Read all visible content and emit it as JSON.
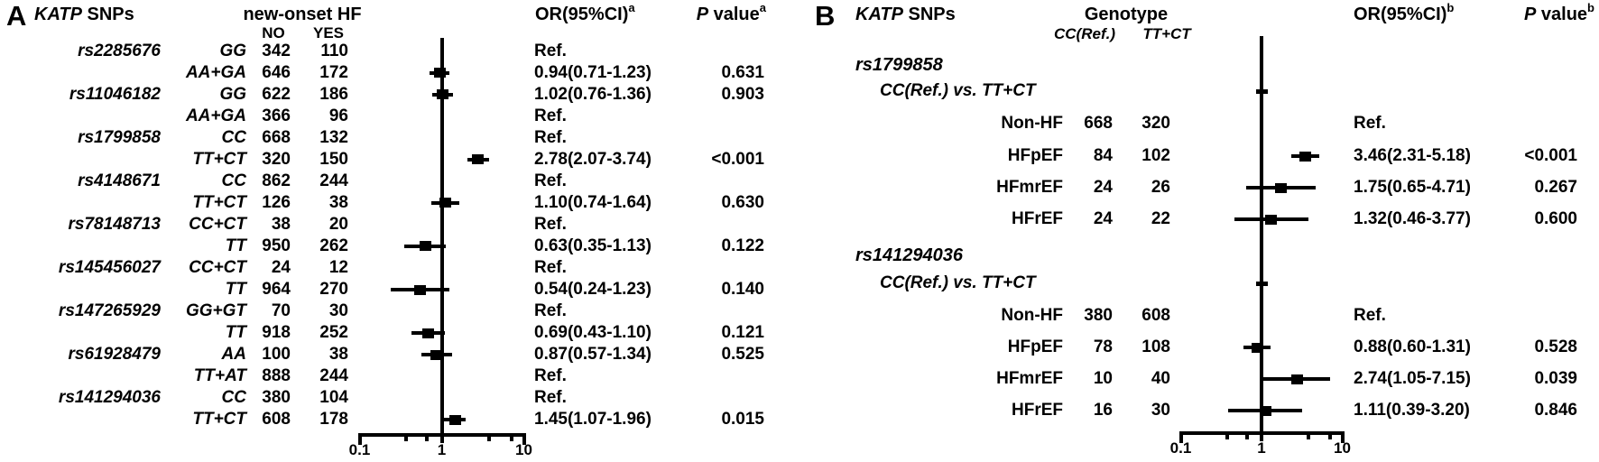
{
  "figure": {
    "background_color": "#ffffff",
    "ink_color": "#000000"
  },
  "chart_data": [
    {
      "type": "forest",
      "panel_label": "A",
      "header": {
        "gene_italic": "KATP",
        "gene_rest": " SNPs",
        "group": "new-onset HF",
        "sub_cols": [
          "NO",
          "YES"
        ],
        "or_label": "OR(95%CI)",
        "or_sup": "a",
        "p_italic": "P",
        "p_rest": " value",
        "p_sup": "a"
      },
      "xaxis": {
        "scale": "log",
        "range": [
          0.1,
          10
        ],
        "tick_values": [
          0.1,
          1,
          10
        ],
        "tick_labels": [
          "0.1",
          "1",
          "10"
        ],
        "reference_value": 1
      },
      "rows": [
        {
          "snp": "rs2285676",
          "genotype": "GG",
          "no": "342",
          "yes": "110",
          "or_label": "Ref.",
          "p_label": ""
        },
        {
          "snp": "",
          "genotype": "AA+GA",
          "no": "646",
          "yes": "172",
          "or": 0.94,
          "ci": [
            0.71,
            1.23
          ],
          "or_label": "0.94(0.71-1.23)",
          "p_label": "0.631"
        },
        {
          "snp": "rs11046182",
          "genotype": "GG",
          "no": "622",
          "yes": "186",
          "or": 1.02,
          "ci": [
            0.76,
            1.36
          ],
          "or_label": "1.02(0.76-1.36)",
          "p_label": "0.903"
        },
        {
          "snp": "",
          "genotype": "AA+GA",
          "no": "366",
          "yes": "96",
          "or_label": "Ref.",
          "p_label": ""
        },
        {
          "snp": "rs1799858",
          "genotype": "CC",
          "no": "668",
          "yes": "132",
          "or_label": "Ref.",
          "p_label": ""
        },
        {
          "snp": "",
          "genotype": "TT+CT",
          "no": "320",
          "yes": "150",
          "or": 2.78,
          "ci": [
            2.07,
            3.74
          ],
          "or_label": "2.78(2.07-3.74)",
          "p_label": "<0.001"
        },
        {
          "snp": "rs4148671",
          "genotype": "CC",
          "no": "862",
          "yes": "244",
          "or_label": "Ref.",
          "p_label": ""
        },
        {
          "snp": "",
          "genotype": "TT+CT",
          "no": "126",
          "yes": "38",
          "or": 1.1,
          "ci": [
            0.74,
            1.64
          ],
          "or_label": "1.10(0.74-1.64)",
          "p_label": "0.630"
        },
        {
          "snp": "rs78148713",
          "genotype": "CC+CT",
          "no": "38",
          "yes": "20",
          "or_label": "Ref.",
          "p_label": ""
        },
        {
          "snp": "",
          "genotype": "TT",
          "no": "950",
          "yes": "262",
          "or": 0.63,
          "ci": [
            0.35,
            1.13
          ],
          "or_label": "0.63(0.35-1.13)",
          "p_label": "0.122"
        },
        {
          "snp": "rs145456027",
          "genotype": "CC+CT",
          "no": "24",
          "yes": "12",
          "or_label": "Ref.",
          "p_label": ""
        },
        {
          "snp": "",
          "genotype": "TT",
          "no": "964",
          "yes": "270",
          "or": 0.54,
          "ci": [
            0.24,
            1.23
          ],
          "or_label": "0.54(0.24-1.23)",
          "p_label": "0.140"
        },
        {
          "snp": "rs147265929",
          "genotype": "GG+GT",
          "no": "70",
          "yes": "30",
          "or_label": "Ref.",
          "p_label": ""
        },
        {
          "snp": "",
          "genotype": "TT",
          "no": "918",
          "yes": "252",
          "or": 0.69,
          "ci": [
            0.43,
            1.1
          ],
          "or_label": "0.69(0.43-1.10)",
          "p_label": "0.121"
        },
        {
          "snp": "rs61928479",
          "genotype": "AA",
          "no": "100",
          "yes": "38",
          "or": 0.87,
          "ci": [
            0.57,
            1.34
          ],
          "or_label": "0.87(0.57-1.34)",
          "p_label": "0.525"
        },
        {
          "snp": "",
          "genotype": "TT+AT",
          "no": "888",
          "yes": "244",
          "or_label": "Ref.",
          "p_label": ""
        },
        {
          "snp": "rs141294036",
          "genotype": "CC",
          "no": "380",
          "yes": "104",
          "or_label": "Ref.",
          "p_label": ""
        },
        {
          "snp": "",
          "genotype": "TT+CT",
          "no": "608",
          "yes": "178",
          "or": 1.45,
          "ci": [
            1.07,
            1.96
          ],
          "or_label": "1.45(1.07-1.96)",
          "p_label": "0.015"
        }
      ]
    },
    {
      "type": "forest",
      "panel_label": "B",
      "header": {
        "gene_italic": "KATP",
        "gene_rest": " SNPs",
        "group": "Genotype",
        "sub_cols": [
          "CC(Ref.)",
          "TT+CT"
        ],
        "or_label": "OR(95%CI)",
        "or_sup": "b",
        "p_italic": "P",
        "p_rest": " value",
        "p_sup": "b"
      },
      "xaxis": {
        "scale": "log",
        "range": [
          0.1,
          10
        ],
        "tick_values": [
          0.1,
          1,
          10
        ],
        "tick_labels": [
          "0.1",
          "1",
          "10"
        ],
        "reference_value": 1
      },
      "rows": [
        {
          "kind": "section",
          "label": "rs1799858"
        },
        {
          "kind": "comparison",
          "label": "CC(Ref.) vs. TT+CT",
          "tick": true
        },
        {
          "kind": "data",
          "label": "Non-HF",
          "cc": "668",
          "ttct": "320",
          "or_label": "Ref.",
          "p_label": ""
        },
        {
          "kind": "data",
          "label": "HFpEF",
          "cc": "84",
          "ttct": "102",
          "or": 3.46,
          "ci": [
            2.31,
            5.18
          ],
          "or_label": "3.46(2.31-5.18)",
          "p_label": "<0.001"
        },
        {
          "kind": "data",
          "label": "HFmrEF",
          "cc": "24",
          "ttct": "26",
          "or": 1.75,
          "ci": [
            0.65,
            4.71
          ],
          "or_label": "1.75(0.65-4.71)",
          "p_label": "0.267"
        },
        {
          "kind": "data",
          "label": "HFrEF",
          "cc": "24",
          "ttct": "22",
          "or": 1.32,
          "ci": [
            0.46,
            3.77
          ],
          "or_label": "1.32(0.46-3.77)",
          "p_label": "0.600"
        },
        {
          "kind": "section",
          "label": "rs141294036"
        },
        {
          "kind": "comparison",
          "label": "CC(Ref.) vs. TT+CT",
          "tick": true
        },
        {
          "kind": "data",
          "label": "Non-HF",
          "cc": "380",
          "ttct": "608",
          "or_label": "Ref.",
          "p_label": ""
        },
        {
          "kind": "data",
          "label": "HFpEF",
          "cc": "78",
          "ttct": "108",
          "or": 0.88,
          "ci": [
            0.6,
            1.31
          ],
          "or_label": "0.88(0.60-1.31)",
          "p_label": "0.528"
        },
        {
          "kind": "data",
          "label": "HFmrEF",
          "cc": "10",
          "ttct": "40",
          "or": 2.74,
          "ci": [
            1.05,
            7.15
          ],
          "or_label": "2.74(1.05-7.15)",
          "p_label": "0.039"
        },
        {
          "kind": "data",
          "label": "HFrEF",
          "cc": "16",
          "ttct": "30",
          "or": 1.11,
          "ci": [
            0.39,
            3.2
          ],
          "or_label": "1.11(0.39-3.20)",
          "p_label": "0.846"
        }
      ]
    }
  ]
}
